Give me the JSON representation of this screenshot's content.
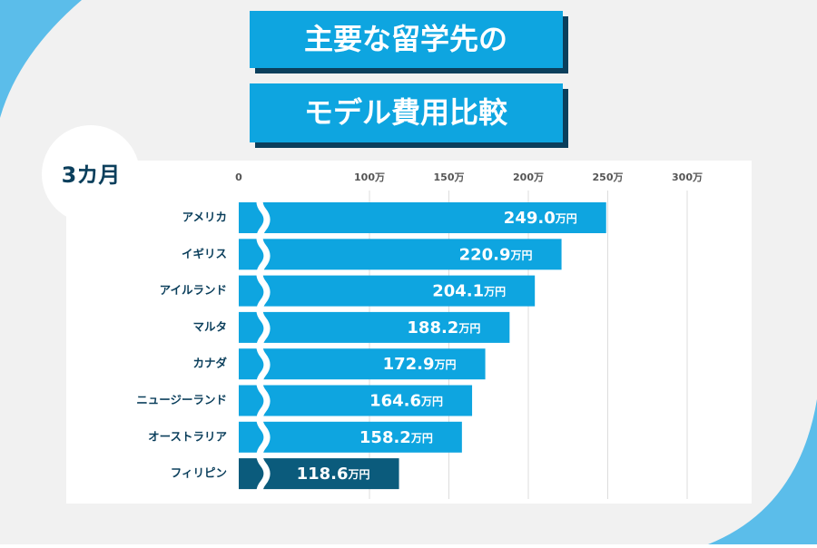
{
  "chart_data": {
    "type": "bar",
    "orientation": "horizontal",
    "title": [
      "主要な留学先の",
      "モデル費用比較"
    ],
    "badge": "3カ月",
    "categories": [
      "アメリカ",
      "イギリス",
      "アイルランド",
      "マルタ",
      "カナダ",
      "ニュージーランド",
      "オーストラリア",
      "フィリピン"
    ],
    "values": [
      249.0,
      220.9,
      204.1,
      188.2,
      172.9,
      164.6,
      158.2,
      118.6
    ],
    "value_labels": [
      "249.0",
      "220.9",
      "204.1",
      "188.2",
      "172.9",
      "164.6",
      "158.2",
      "118.6"
    ],
    "value_unit": "万円",
    "bar_colors": [
      "#0ea5e0",
      "#0ea5e0",
      "#0ea5e0",
      "#0ea5e0",
      "#0ea5e0",
      "#0ea5e0",
      "#0ea5e0",
      "#0b5b7c"
    ],
    "xticks": [
      0,
      {
        "value": 100,
        "label": "100万"
      },
      {
        "value": 150,
        "label": "150万"
      },
      {
        "value": 200,
        "label": "200万"
      },
      {
        "value": 250,
        "label": "250万"
      },
      {
        "value": 300,
        "label": "300万"
      }
    ],
    "axis_break": true,
    "grid": true
  }
}
